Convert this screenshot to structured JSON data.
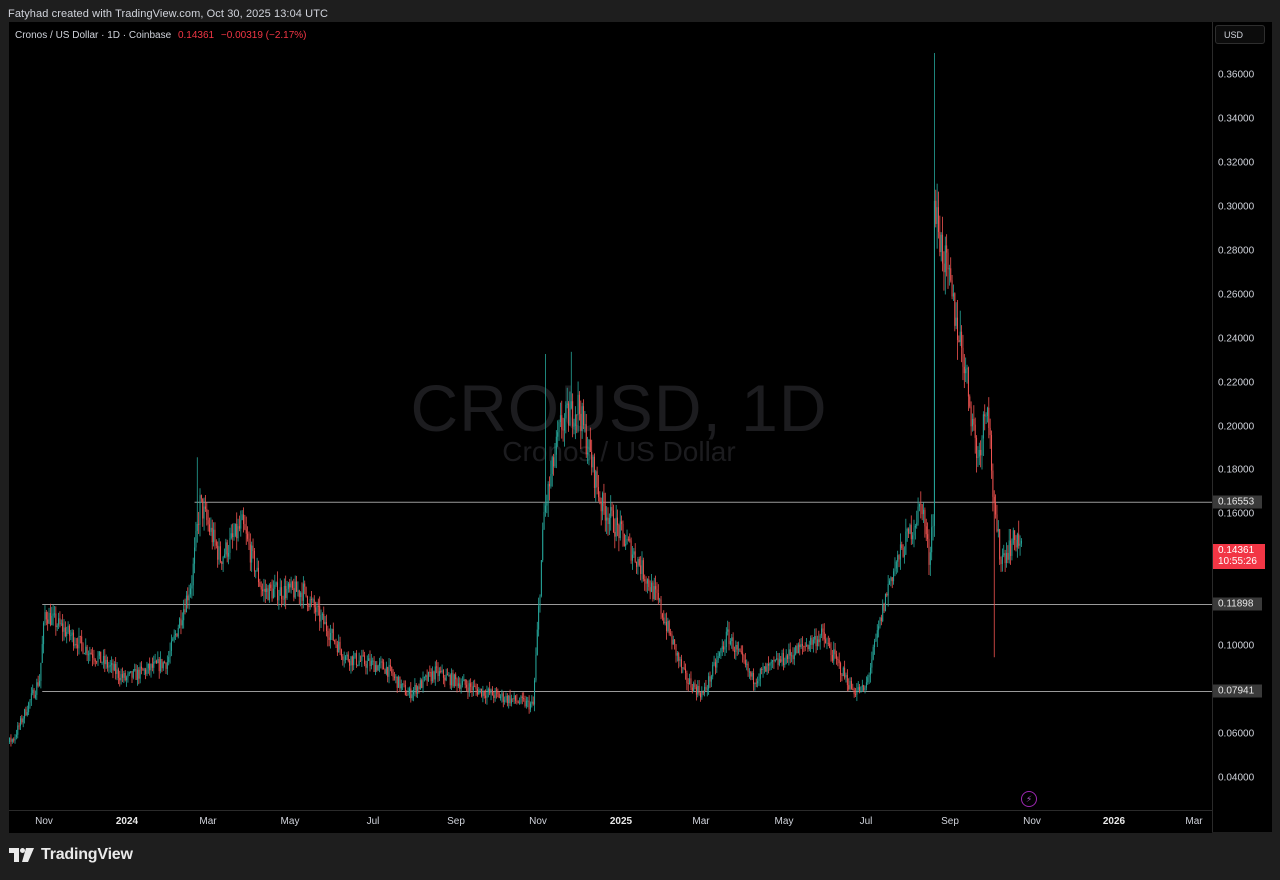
{
  "header": {
    "credit": "Fatyhad created with TradingView.com, Oct 30, 2025 13:04 UTC"
  },
  "legend": {
    "symbol_desc": "Cronos / US Dollar · 1D · Coinbase",
    "last": "0.14361",
    "change": "−0.00319 (−2.17%)"
  },
  "watermark": {
    "line1": "CROUSD, 1D",
    "line2": "Cronos / US Dollar"
  },
  "price_axis": {
    "currency": "USD",
    "ticks": [
      "0.36000",
      "0.34000",
      "0.32000",
      "0.30000",
      "0.28000",
      "0.26000",
      "0.24000",
      "0.22000",
      "0.20000",
      "0.18000",
      "0.16000",
      "0.10000",
      "0.06000",
      "0.04000"
    ],
    "level_tags": [
      "0.16553",
      "0.11898",
      "0.07941"
    ],
    "last_price": "0.14361",
    "countdown": "10:55:26"
  },
  "time_axis": {
    "ticks": [
      {
        "label": "Nov",
        "major": false
      },
      {
        "label": "2024",
        "major": true
      },
      {
        "label": "Mar",
        "major": false
      },
      {
        "label": "May",
        "major": false
      },
      {
        "label": "Jul",
        "major": false
      },
      {
        "label": "Sep",
        "major": false
      },
      {
        "label": "Nov",
        "major": false
      },
      {
        "label": "2025",
        "major": true
      },
      {
        "label": "Mar",
        "major": false
      },
      {
        "label": "May",
        "major": false
      },
      {
        "label": "Jul",
        "major": false
      },
      {
        "label": "Sep",
        "major": false
      },
      {
        "label": "Nov",
        "major": false
      },
      {
        "label": "2026",
        "major": true
      },
      {
        "label": "Mar",
        "major": false
      }
    ]
  },
  "footer": {
    "brand": "TradingView"
  },
  "colors": {
    "up": "#26a69a",
    "down": "#ef5350",
    "level": "#9a9a9a",
    "last_tag": "#f23645"
  },
  "chart_data": {
    "type": "candlestick",
    "title": "Cronos / US Dollar · 1D · Coinbase",
    "xlabel": "",
    "ylabel": "USD",
    "ylim": [
      0.025,
      0.37
    ],
    "x_ticks": [
      "Nov",
      "2024",
      "Mar",
      "May",
      "Jul",
      "Sep",
      "Nov",
      "2025",
      "Mar",
      "May",
      "Jul",
      "Sep",
      "Nov",
      "2026",
      "Mar"
    ],
    "y_ticks": [
      0.04,
      0.06,
      0.08,
      0.1,
      0.12,
      0.14,
      0.16,
      0.18,
      0.2,
      0.22,
      0.24,
      0.26,
      0.28,
      0.3,
      0.32,
      0.34,
      0.36
    ],
    "grid": false,
    "horizontal_levels": [
      {
        "price": 0.16553,
        "start": "2024-03-01"
      },
      {
        "price": 0.11898,
        "start": "2023-11-10"
      },
      {
        "price": 0.07941,
        "start": "2023-11-10"
      }
    ],
    "last_close": 0.14361,
    "change": -0.00319,
    "change_pct": -2.17,
    "approx_close_path": [
      {
        "date": "2023-10-01",
        "close": 0.05
      },
      {
        "date": "2023-10-20",
        "close": 0.058
      },
      {
        "date": "2023-11-08",
        "close": 0.085
      },
      {
        "date": "2023-11-12",
        "close": 0.115
      },
      {
        "date": "2023-12-10",
        "close": 0.1
      },
      {
        "date": "2024-01-10",
        "close": 0.085
      },
      {
        "date": "2024-02-10",
        "close": 0.093
      },
      {
        "date": "2024-02-28",
        "close": 0.13
      },
      {
        "date": "2024-03-05",
        "close": 0.165
      },
      {
        "date": "2024-03-20",
        "close": 0.14
      },
      {
        "date": "2024-04-05",
        "close": 0.155
      },
      {
        "date": "2024-04-20",
        "close": 0.125
      },
      {
        "date": "2024-05-20",
        "close": 0.125
      },
      {
        "date": "2024-06-20",
        "close": 0.095
      },
      {
        "date": "2024-07-20",
        "close": 0.09
      },
      {
        "date": "2024-08-05",
        "close": 0.078
      },
      {
        "date": "2024-08-25",
        "close": 0.088
      },
      {
        "date": "2024-09-25",
        "close": 0.08
      },
      {
        "date": "2024-11-05",
        "close": 0.073
      },
      {
        "date": "2024-11-13",
        "close": 0.16
      },
      {
        "date": "2024-11-25",
        "close": 0.2
      },
      {
        "date": "2024-12-08",
        "close": 0.21
      },
      {
        "date": "2024-12-25",
        "close": 0.165
      },
      {
        "date": "2025-01-20",
        "close": 0.14
      },
      {
        "date": "2025-02-05",
        "close": 0.12
      },
      {
        "date": "2025-02-25",
        "close": 0.085
      },
      {
        "date": "2025-03-10",
        "close": 0.078
      },
      {
        "date": "2025-03-28",
        "close": 0.105
      },
      {
        "date": "2025-04-15",
        "close": 0.085
      },
      {
        "date": "2025-05-10",
        "close": 0.095
      },
      {
        "date": "2025-06-05",
        "close": 0.105
      },
      {
        "date": "2025-06-28",
        "close": 0.08
      },
      {
        "date": "2025-07-07",
        "close": 0.08
      },
      {
        "date": "2025-07-25",
        "close": 0.13
      },
      {
        "date": "2025-08-18",
        "close": 0.165
      },
      {
        "date": "2025-08-23",
        "close": 0.14
      },
      {
        "date": "2025-08-26",
        "close": 0.16
      },
      {
        "date": "2025-08-27",
        "close": 0.3
      },
      {
        "date": "2025-09-05",
        "close": 0.27
      },
      {
        "date": "2025-09-18",
        "close": 0.23
      },
      {
        "date": "2025-09-28",
        "close": 0.185
      },
      {
        "date": "2025-10-05",
        "close": 0.215
      },
      {
        "date": "2025-10-10",
        "close": 0.16
      },
      {
        "date": "2025-10-15",
        "close": 0.14
      },
      {
        "date": "2025-10-27",
        "close": 0.15
      },
      {
        "date": "2025-10-30",
        "close": 0.14361
      }
    ],
    "notable_wicks": [
      {
        "date": "2025-08-27",
        "high": 0.37
      },
      {
        "date": "2025-10-10",
        "low": 0.095
      },
      {
        "date": "2024-03-03",
        "high": 0.186
      },
      {
        "date": "2024-11-14",
        "high": 0.233
      },
      {
        "date": "2024-12-03",
        "high": 0.234
      }
    ]
  }
}
